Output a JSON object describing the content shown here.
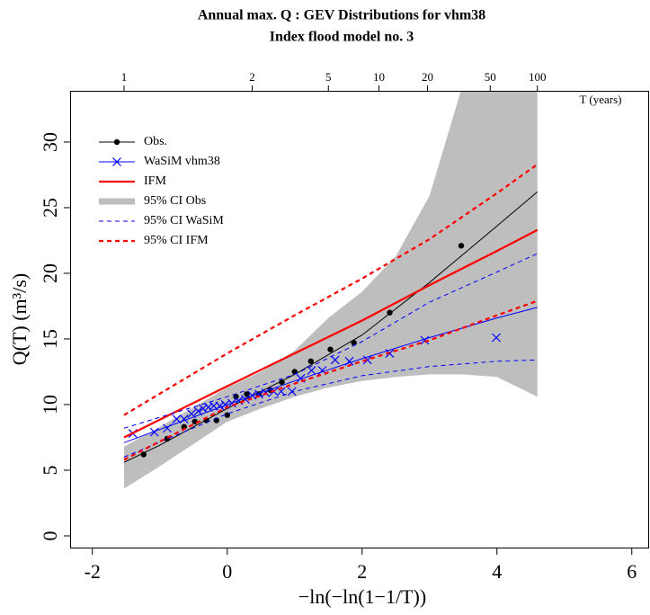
{
  "chart_data": {
    "type": "line",
    "title": "Annual max. Q : GEV Distributions for vhm38",
    "subtitle": "Index flood model no.  3",
    "xlabel": "−ln(−ln(1−1/T))",
    "ylabel": "Q(T) (m³/s)",
    "top_axis_label": "T (years)",
    "xlim": [
      -2.33,
      6.27
    ],
    "ylim": [
      -0.96,
      33.9
    ],
    "xticks": [
      -2,
      0,
      2,
      4,
      6
    ],
    "yticks": [
      0,
      5,
      10,
      15,
      20,
      25,
      30
    ],
    "top_ticks": [
      {
        "value": -1.53,
        "label": "1"
      },
      {
        "value": 0.37,
        "label": "2"
      },
      {
        "value": 1.5,
        "label": "5"
      },
      {
        "value": 2.25,
        "label": "10"
      },
      {
        "value": 2.97,
        "label": "20"
      },
      {
        "value": 3.9,
        "label": "50"
      },
      {
        "value": 4.6,
        "label": "100"
      }
    ],
    "legend": "top-left",
    "series": [
      {
        "name": "Obs.",
        "color": "#000000",
        "marker": "dot",
        "line": "solid",
        "weight": "thin",
        "x": [
          -1.24,
          -0.89,
          -0.64,
          -0.48,
          -0.31,
          -0.16,
          0,
          0.13,
          0.29,
          0.47,
          0.64,
          0.81,
          1.0,
          1.24,
          1.53,
          1.88,
          2.41,
          3.47
        ],
        "values": [
          6.2,
          7.4,
          8.3,
          8.7,
          8.8,
          8.8,
          9.2,
          10.6,
          10.8,
          10.8,
          11.1,
          11.7,
          12.5,
          13.3,
          14.2,
          14.7,
          17.0,
          22.1
        ],
        "fit_x": [
          -1.53,
          -1,
          0,
          1,
          2,
          3,
          4,
          4.6
        ],
        "fit_values": [
          5.6,
          6.9,
          9.7,
          12.3,
          15.3,
          19.3,
          23.6,
          26.2
        ]
      },
      {
        "name": "WaSiM vhm38",
        "color": "#0000ff",
        "marker": "x",
        "line": "solid",
        "weight": "thin",
        "x": [
          -1.4,
          -1.08,
          -0.89,
          -0.75,
          -0.64,
          -0.53,
          -0.43,
          -0.36,
          -0.28,
          -0.2,
          -0.11,
          -0.03,
          0.07,
          0.17,
          0.27,
          0.37,
          0.47,
          0.57,
          0.69,
          0.8,
          0.96,
          1.09,
          1.25,
          1.41,
          1.6,
          1.81,
          2.08,
          2.41,
          2.93,
          3.99
        ],
        "values": [
          7.8,
          7.9,
          8.2,
          8.9,
          8.9,
          9.3,
          9.5,
          9.7,
          9.8,
          9.9,
          9.9,
          10.0,
          10.1,
          10.3,
          10.4,
          10.7,
          10.8,
          10.9,
          11.0,
          11.0,
          11.0,
          12.0,
          12.6,
          12.6,
          13.4,
          13.3,
          13.4,
          13.9,
          14.9,
          15.1
        ],
        "fit_x": [
          -1.53,
          0,
          1,
          2,
          3,
          4,
          4.6
        ],
        "fit_values": [
          7.1,
          10.0,
          11.8,
          13.5,
          15.1,
          16.6,
          17.4
        ]
      },
      {
        "name": "IFM",
        "color": "#ff0000",
        "line": "solid",
        "weight": "bold",
        "x": [
          -1.53,
          0,
          1,
          2,
          3,
          4,
          4.6
        ],
        "values": [
          7.5,
          11.4,
          13.9,
          16.4,
          19.1,
          21.7,
          23.3
        ]
      },
      {
        "name": "95% CI Obs",
        "color": "#bebebe",
        "line": "band",
        "weight": "bold",
        "x": [
          -1.53,
          -1,
          0,
          0.5,
          1,
          1.5,
          2,
          2.5,
          3,
          3.5,
          4,
          4.6
        ],
        "upper": [
          6.8,
          8.3,
          11.3,
          12.5,
          14.1,
          16.6,
          18.6,
          21.3,
          25.9,
          34.5,
          39,
          44
        ],
        "lower": [
          3.6,
          5.3,
          8.7,
          9.7,
          10.6,
          11.3,
          11.8,
          12.1,
          12.3,
          12.3,
          12.1,
          10.6
        ]
      },
      {
        "name": "95% CI WaSiM",
        "color": "#0000ff",
        "line": "dashed",
        "weight": "thin",
        "x": [
          -1.53,
          0,
          1,
          2,
          3,
          4,
          4.6
        ],
        "upper": [
          8.2,
          10.6,
          12.3,
          14.8,
          17.8,
          20.1,
          21.5
        ],
        "lower": [
          6.0,
          9.3,
          11.0,
          12.2,
          12.9,
          13.3,
          13.4
        ]
      },
      {
        "name": "95% CI IFM",
        "color": "#ff0000",
        "line": "dashed",
        "weight": "bold",
        "x": [
          -1.53,
          0,
          1,
          2,
          3,
          4,
          4.6
        ],
        "upper": [
          9.2,
          13.9,
          16.8,
          19.6,
          22.6,
          26.1,
          28.3
        ],
        "lower": [
          5.8,
          9.8,
          11.6,
          13.3,
          14.9,
          16.8,
          17.9
        ]
      }
    ]
  }
}
